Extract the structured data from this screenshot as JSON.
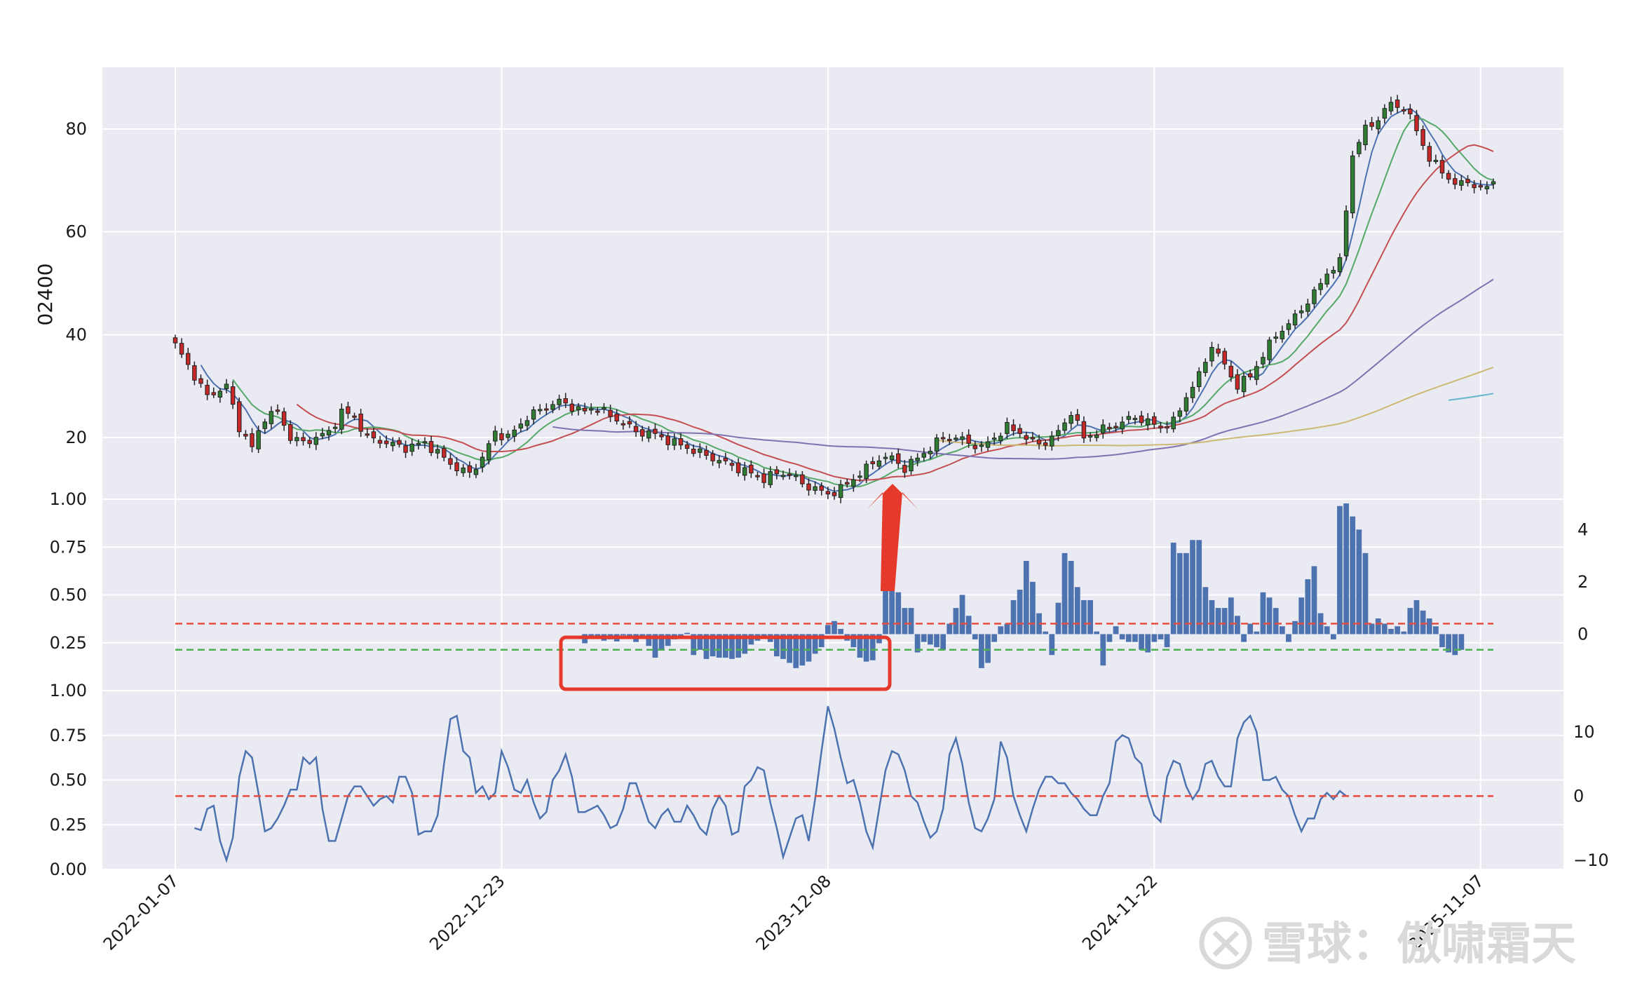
{
  "chart_data": [
    {
      "panel": "price",
      "type": "candlestick",
      "ylabel": "02400",
      "yticks": [
        20,
        40,
        60,
        80
      ],
      "ylim": [
        8,
        92
      ],
      "xticks": [
        "2022-01-07",
        "2022-12-23",
        "2023-12-08",
        "2024-11-22",
        "2025-11-07"
      ],
      "grid": true,
      "up_color": "#2e7d32",
      "down_color": "#c62828",
      "close_anchors": [
        [
          0,
          38
        ],
        [
          2,
          34
        ],
        [
          5,
          28
        ],
        [
          8,
          30
        ],
        [
          10,
          22
        ],
        [
          12,
          18
        ],
        [
          14,
          24
        ],
        [
          16,
          25
        ],
        [
          18,
          20
        ],
        [
          20,
          19
        ],
        [
          22,
          20
        ],
        [
          24,
          21
        ],
        [
          26,
          25
        ],
        [
          28,
          24
        ],
        [
          30,
          20
        ],
        [
          33,
          19
        ],
        [
          36,
          18
        ],
        [
          39,
          19
        ],
        [
          42,
          16
        ],
        [
          44,
          14
        ],
        [
          46,
          13
        ],
        [
          48,
          16
        ],
        [
          50,
          21
        ],
        [
          52,
          20
        ],
        [
          55,
          24
        ],
        [
          58,
          26
        ],
        [
          60,
          27
        ],
        [
          62,
          26
        ],
        [
          64,
          25
        ],
        [
          66,
          26
        ],
        [
          68,
          24
        ],
        [
          70,
          23
        ],
        [
          72,
          21
        ],
        [
          74,
          21
        ],
        [
          76,
          20
        ],
        [
          78,
          19
        ],
        [
          80,
          18
        ],
        [
          82,
          17
        ],
        [
          84,
          16
        ],
        [
          86,
          15
        ],
        [
          88,
          14
        ],
        [
          90,
          13
        ],
        [
          92,
          12
        ],
        [
          94,
          13
        ],
        [
          96,
          13
        ],
        [
          98,
          11
        ],
        [
          100,
          10
        ],
        [
          102,
          9
        ],
        [
          104,
          10
        ],
        [
          106,
          12
        ],
        [
          108,
          14
        ],
        [
          110,
          16
        ],
        [
          112,
          16
        ],
        [
          114,
          14
        ],
        [
          116,
          16
        ],
        [
          118,
          18
        ],
        [
          120,
          20
        ],
        [
          122,
          20
        ],
        [
          124,
          19
        ],
        [
          126,
          18
        ],
        [
          128,
          20
        ],
        [
          130,
          22
        ],
        [
          132,
          21
        ],
        [
          134,
          19
        ],
        [
          136,
          19
        ],
        [
          138,
          21
        ],
        [
          140,
          25
        ],
        [
          142,
          20
        ],
        [
          144,
          21
        ],
        [
          146,
          22
        ],
        [
          148,
          23
        ],
        [
          150,
          24
        ],
        [
          152,
          23
        ],
        [
          154,
          22
        ],
        [
          156,
          23
        ],
        [
          158,
          28
        ],
        [
          160,
          32
        ],
        [
          162,
          38
        ],
        [
          164,
          34
        ],
        [
          166,
          30
        ],
        [
          168,
          32
        ],
        [
          170,
          36
        ],
        [
          172,
          40
        ],
        [
          174,
          42
        ],
        [
          176,
          45
        ],
        [
          178,
          48
        ],
        [
          180,
          52
        ],
        [
          182,
          54
        ],
        [
          184,
          75
        ],
        [
          186,
          80
        ],
        [
          188,
          82
        ],
        [
          190,
          85
        ],
        [
          192,
          84
        ],
        [
          194,
          80
        ],
        [
          196,
          74
        ],
        [
          198,
          72
        ],
        [
          200,
          69
        ],
        [
          202,
          70
        ],
        [
          204,
          68
        ],
        [
          206,
          70
        ]
      ]
    },
    {
      "panel": "bars",
      "type": "bar",
      "yticks_left": [
        "0.25",
        "0.50",
        "0.75",
        "1.00"
      ],
      "yticks_right": [
        "0",
        "2",
        "4"
      ],
      "ylim": [
        -2,
        5
      ],
      "bar_color": "#4c72b0",
      "ref_lines": [
        {
          "value": 0.4,
          "color": "#e74c3c"
        },
        {
          "value": -0.6,
          "color": "#4caf50"
        }
      ],
      "values_range_from": 64,
      "values": [
        -0.35,
        -0.15,
        -0.12,
        -0.25,
        -0.2,
        -0.28,
        -0.05,
        -0.12,
        -0.3,
        -0.15,
        -0.45,
        -0.9,
        -0.6,
        -0.45,
        -0.2,
        -0.1,
        0.05,
        -0.8,
        -0.6,
        -0.95,
        -0.85,
        -0.9,
        -0.9,
        -0.95,
        -0.9,
        -0.75,
        -0.4,
        -0.25,
        -0.1,
        -0.3,
        -0.85,
        -0.95,
        -1.1,
        -1.3,
        -1.2,
        -1.05,
        -0.75,
        -0.5,
        0.35,
        0.5,
        0.2,
        -0.25,
        -0.5,
        -0.9,
        -1.05,
        -1.0,
        -0.35,
        1.7,
        2.0,
        1.6,
        1.0,
        1.0,
        -0.7,
        -0.3,
        -0.4,
        -0.5,
        -0.6,
        0.4,
        1.0,
        1.5,
        0.7,
        -0.2,
        -1.3,
        -1.1,
        -0.3,
        0.3,
        0.4,
        1.3,
        1.7,
        2.8,
        2.0,
        0.8,
        0.1,
        -0.8,
        1.2,
        3.1,
        2.8,
        1.8,
        1.3,
        1.3,
        0.1,
        -1.2,
        -0.3,
        0.3,
        -0.2,
        -0.3,
        -0.3,
        -0.6,
        -0.7,
        -0.3,
        -0.2,
        -0.5,
        3.5,
        3.1,
        3.1,
        3.6,
        3.6,
        1.8,
        1.3,
        1.0,
        1.0,
        1.4,
        0.7,
        -0.3,
        0.4,
        0.1,
        1.6,
        1.4,
        1.0,
        0.3,
        -0.3,
        0.5,
        1.4,
        2.1,
        2.6,
        0.8,
        0.3,
        -0.2,
        4.9,
        5.0,
        4.5,
        4.0,
        3.1,
        0.4,
        0.6,
        0.4,
        0.2,
        0.3,
        0.1,
        1.0,
        1.3,
        0.9,
        0.6,
        0.3,
        -0.5,
        -0.7,
        -0.8,
        -0.6
      ]
    },
    {
      "panel": "oscillator",
      "type": "line",
      "yticks_left": [
        "0.00",
        "0.25",
        "0.50",
        "0.75",
        "1.00"
      ],
      "yticks_right": [
        "−10",
        "0",
        "10"
      ],
      "ylim": [
        -11,
        16
      ],
      "line_color": "#4c72b0",
      "ref_line": {
        "value": 0,
        "color": "#e74c3c"
      },
      "values_range_from": 3,
      "values": [
        -5,
        -5.3,
        -2,
        -1.5,
        -7,
        -10,
        -6.5,
        3,
        7,
        6,
        0.5,
        -5.5,
        -5,
        -3.5,
        -1.5,
        1,
        1,
        6,
        5,
        6,
        -2,
        -7,
        -7,
        -3.5,
        0,
        1.5,
        1.5,
        0,
        -1.5,
        -0.5,
        0,
        -1,
        3,
        3,
        0.5,
        -6,
        -5.5,
        -5.5,
        -3,
        5,
        12,
        12.5,
        7,
        6,
        0.5,
        1.5,
        -0.5,
        0.5,
        7,
        4.5,
        1,
        0.5,
        2.5,
        -1,
        -3.5,
        -2.5,
        2.5,
        4,
        6.5,
        3,
        -2.5,
        -2.5,
        -2,
        -1.5,
        -3,
        -5,
        -4.5,
        -2,
        2,
        2,
        -1,
        -4,
        -5,
        -3,
        -2,
        -4,
        -4,
        -1.5,
        -3,
        -5,
        -6,
        -2,
        0,
        -1.5,
        -6,
        -5.5,
        1.5,
        2.5,
        4.5,
        4,
        -1,
        -5,
        -9.5,
        -6.5,
        -3.5,
        -3,
        -7,
        -0.5,
        7,
        14,
        10.5,
        6,
        2,
        2.5,
        -1,
        -5.5,
        -8,
        -2,
        4,
        7,
        6.5,
        4,
        0,
        -1,
        -4,
        -6.5,
        -5.5,
        -2,
        6.5,
        9,
        5,
        -1,
        -5,
        -5.5,
        -3.5,
        -0.5,
        8.5,
        6,
        0,
        -3,
        -5.5,
        -2,
        1,
        3,
        3,
        2,
        2,
        0.5,
        -0.5,
        -2,
        -3,
        -3,
        0,
        2,
        8.5,
        9.5,
        9,
        6,
        5,
        0,
        -3,
        -4,
        3,
        5.5,
        5,
        1.5,
        -0.5,
        1,
        5,
        5.5,
        3,
        1.5,
        1.5,
        9,
        11.5,
        12.5,
        10,
        2.5,
        2.5,
        3,
        1,
        0,
        -3,
        -5.5,
        -3.5,
        -3.5,
        -0.5,
        0.5,
        -0.5,
        0.8,
        0
      ]
    }
  ],
  "watermark": "雪球：傲啸霜天"
}
